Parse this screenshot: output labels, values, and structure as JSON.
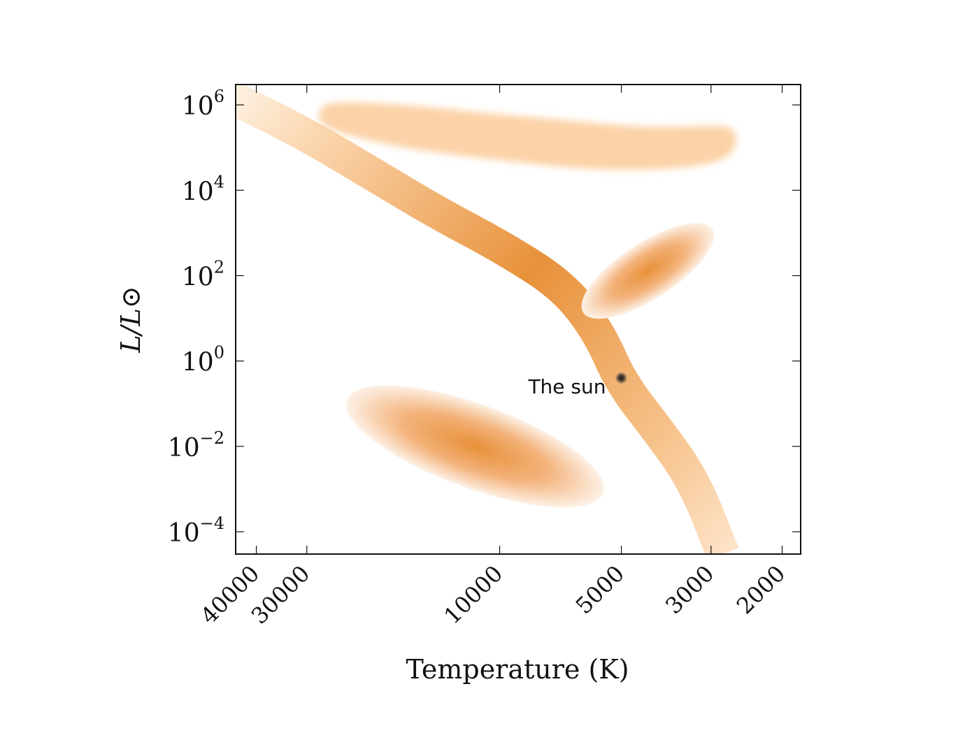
{
  "chart_data": {
    "type": "scatter",
    "title": "",
    "xlabel": "Temperature (K)",
    "ylabel": "L/L⊙",
    "xscale": "log",
    "xreversed": true,
    "yscale": "log",
    "xlim": [
      45000,
      1800
    ],
    "ylim": [
      3e-05,
      3000000
    ],
    "grid": false,
    "legend": "none",
    "x_ticks": [
      {
        "value": 40000,
        "label": "40000"
      },
      {
        "value": 30000,
        "label": "30000"
      },
      {
        "value": 10000,
        "label": "10000"
      },
      {
        "value": 5000,
        "label": "5000"
      },
      {
        "value": 3000,
        "label": "3000"
      },
      {
        "value": 2000,
        "label": "2000"
      }
    ],
    "y_ticks": [
      {
        "value": 0.0001,
        "base": "10",
        "exp": "−4"
      },
      {
        "value": 0.01,
        "base": "10",
        "exp": "−2"
      },
      {
        "value": 1,
        "base": "10",
        "exp": "0"
      },
      {
        "value": 100,
        "base": "10",
        "exp": "2"
      },
      {
        "value": 10000,
        "base": "10",
        "exp": "4"
      },
      {
        "value": 1000000,
        "base": "10",
        "exp": "6"
      }
    ],
    "regions": [
      {
        "kind": "band",
        "color": "#e8913a",
        "path": [
          [
            46000,
            1500000
          ],
          [
            30000,
            200000
          ],
          [
            20000,
            20000
          ],
          [
            14000,
            2700
          ],
          [
            10000,
            500
          ],
          [
            7000,
            60
          ],
          [
            5700,
            5
          ],
          [
            5000,
            0.3
          ],
          [
            4000,
            0.02
          ],
          [
            3300,
            0.0015
          ],
          [
            2800,
            3e-05
          ]
        ]
      },
      {
        "kind": "blob",
        "color": "#fcd3a8",
        "outline": [
          [
            28000,
            1000000
          ],
          [
            24000,
            1200000
          ],
          [
            20000,
            1100000
          ],
          [
            15000,
            900000
          ],
          [
            10000,
            600000
          ],
          [
            7000,
            450000
          ],
          [
            5000,
            330000
          ],
          [
            4000,
            300000
          ],
          [
            3000,
            330000
          ],
          [
            2600,
            300000
          ],
          [
            2600,
            80000
          ],
          [
            3000,
            40000
          ],
          [
            4000,
            30000
          ],
          [
            6000,
            30000
          ],
          [
            10000,
            50000
          ],
          [
            15000,
            80000
          ],
          [
            20000,
            130000
          ],
          [
            28000,
            300000
          ]
        ]
      },
      {
        "kind": "ellipse",
        "color": "#e8913a",
        "center": [
          4300,
          130
        ],
        "peak_color": "#e8913a"
      },
      {
        "kind": "ellipse",
        "color": "#e8913a",
        "center": [
          11500,
          0.01
        ],
        "peak_color": "#e8913a"
      }
    ],
    "points": [
      {
        "x": 5000,
        "y": 0.4,
        "label": "The sun",
        "color": "#111111"
      }
    ]
  }
}
